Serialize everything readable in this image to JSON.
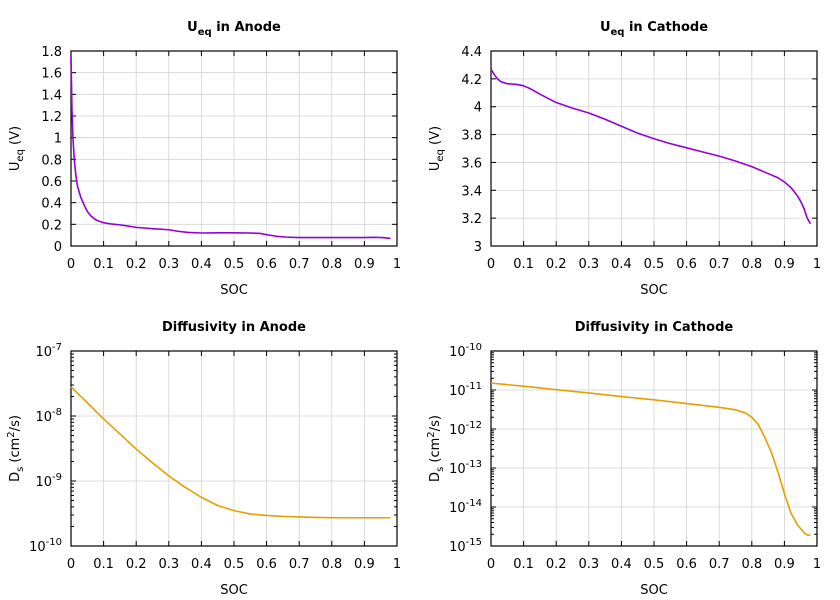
{
  "chart_data": [
    {
      "type": "line",
      "title": "U",
      "title_sub": "eq",
      "title_suffix": " in Anode",
      "xlabel": "SOC",
      "ylabel": "U",
      "ylabel_sub": "eq",
      "ylabel_suffix": " (V)",
      "xlim": [
        0,
        1
      ],
      "ylim": [
        0,
        1.8
      ],
      "yscale": "linear",
      "grid": true,
      "xticks": [
        0,
        0.1,
        0.2,
        0.3,
        0.4,
        0.5,
        0.6,
        0.7,
        0.8,
        0.9,
        1
      ],
      "xtick_labels": [
        "0",
        "0.1",
        "0.2",
        "0.3",
        "0.4",
        "0.5",
        "0.6",
        "0.7",
        "0.8",
        "0.9",
        "1"
      ],
      "yticks": [
        0,
        0.2,
        0.4,
        0.6,
        0.8,
        1,
        1.2,
        1.4,
        1.6,
        1.8
      ],
      "ytick_labels": [
        "0",
        "0.2",
        "0.4",
        "0.6",
        "0.8",
        "1",
        "1.2",
        "1.4",
        "1.6",
        "1.8"
      ],
      "color": "#9400d3",
      "series": [
        {
          "x": [
            0,
            0.003,
            0.006,
            0.01,
            0.015,
            0.02,
            0.03,
            0.04,
            0.05,
            0.06,
            0.07,
            0.08,
            0.09,
            0.1,
            0.12,
            0.15,
            0.18,
            0.2,
            0.25,
            0.3,
            0.33,
            0.36,
            0.4,
            0.45,
            0.5,
            0.55,
            0.58,
            0.6,
            0.63,
            0.66,
            0.7,
            0.75,
            0.8,
            0.85,
            0.9,
            0.93,
            0.96,
            0.98
          ],
          "values": [
            1.75,
            1.25,
            1.0,
            0.8,
            0.65,
            0.55,
            0.45,
            0.38,
            0.32,
            0.28,
            0.255,
            0.235,
            0.225,
            0.215,
            0.205,
            0.195,
            0.182,
            0.172,
            0.16,
            0.15,
            0.135,
            0.125,
            0.12,
            0.122,
            0.122,
            0.12,
            0.116,
            0.105,
            0.09,
            0.082,
            0.078,
            0.078,
            0.078,
            0.078,
            0.078,
            0.08,
            0.077,
            0.07
          ]
        }
      ]
    },
    {
      "type": "line",
      "title": "U",
      "title_sub": "eq",
      "title_suffix": " in Cathode",
      "xlabel": "SOC",
      "ylabel": "U",
      "ylabel_sub": "eq",
      "ylabel_suffix": " (V)",
      "xlim": [
        0,
        1
      ],
      "ylim": [
        3,
        4.4
      ],
      "yscale": "linear",
      "grid": true,
      "xticks": [
        0,
        0.1,
        0.2,
        0.3,
        0.4,
        0.5,
        0.6,
        0.7,
        0.8,
        0.9,
        1
      ],
      "xtick_labels": [
        "0",
        "0.1",
        "0.2",
        "0.3",
        "0.4",
        "0.5",
        "0.6",
        "0.7",
        "0.8",
        "0.9",
        "1"
      ],
      "yticks": [
        3,
        3.2,
        3.4,
        3.6,
        3.8,
        4,
        4.2,
        4.4
      ],
      "ytick_labels": [
        "3",
        "3.2",
        "3.4",
        "3.6",
        "3.8",
        "4",
        "4.2",
        "4.4"
      ],
      "color": "#9400d3",
      "series": [
        {
          "x": [
            0,
            0.01,
            0.02,
            0.03,
            0.05,
            0.08,
            0.1,
            0.12,
            0.15,
            0.2,
            0.25,
            0.3,
            0.35,
            0.4,
            0.45,
            0.5,
            0.55,
            0.6,
            0.65,
            0.7,
            0.75,
            0.8,
            0.85,
            0.88,
            0.9,
            0.92,
            0.94,
            0.95,
            0.96,
            0.97,
            0.98
          ],
          "values": [
            4.27,
            4.23,
            4.2,
            4.18,
            4.165,
            4.16,
            4.15,
            4.13,
            4.09,
            4.03,
            3.99,
            3.955,
            3.91,
            3.86,
            3.81,
            3.77,
            3.735,
            3.705,
            3.675,
            3.645,
            3.61,
            3.57,
            3.52,
            3.49,
            3.46,
            3.42,
            3.36,
            3.32,
            3.27,
            3.2,
            3.16
          ]
        }
      ]
    },
    {
      "type": "line",
      "title": "Diffusivity in Anode",
      "xlabel": "SOC",
      "ylabel": "D",
      "ylabel_sub": "s",
      "ylabel_mid": " (cm",
      "ylabel_sup": "2",
      "ylabel_suffix": "/s)",
      "xlim": [
        0,
        1
      ],
      "ylim": [
        1e-10,
        1e-07
      ],
      "yscale": "log",
      "grid": true,
      "xticks": [
        0,
        0.1,
        0.2,
        0.3,
        0.4,
        0.5,
        0.6,
        0.7,
        0.8,
        0.9,
        1
      ],
      "xtick_labels": [
        "0",
        "0.1",
        "0.2",
        "0.3",
        "0.4",
        "0.5",
        "0.6",
        "0.7",
        "0.8",
        "0.9",
        "1"
      ],
      "yticks": [
        1e-10,
        1e-09,
        1e-08,
        1e-07
      ],
      "ytick_base": "10",
      "ytick_exps": [
        "-10",
        "-9",
        "-8",
        "-7"
      ],
      "color": "#e69f00",
      "series": [
        {
          "x": [
            0,
            0.05,
            0.1,
            0.15,
            0.2,
            0.25,
            0.3,
            0.35,
            0.4,
            0.45,
            0.5,
            0.55,
            0.6,
            0.65,
            0.7,
            0.75,
            0.8,
            0.85,
            0.9,
            0.95,
            0.98
          ],
          "values": [
            2.8e-08,
            1.6e-08,
            9e-09,
            5.3e-09,
            3.1e-09,
            1.9e-09,
            1.2e-09,
            8e-10,
            5.6e-10,
            4.2e-10,
            3.5e-10,
            3.1e-10,
            2.95e-10,
            2.85e-10,
            2.8e-10,
            2.75e-10,
            2.73e-10,
            2.72e-10,
            2.72e-10,
            2.72e-10,
            2.72e-10
          ]
        }
      ]
    },
    {
      "type": "line",
      "title": "Diffusivity in Cathode",
      "xlabel": "SOC",
      "ylabel": "D",
      "ylabel_sub": "s",
      "ylabel_mid": " (cm",
      "ylabel_sup": "2",
      "ylabel_suffix": "/s)",
      "xlim": [
        0,
        1
      ],
      "ylim": [
        1e-15,
        1e-10
      ],
      "yscale": "log",
      "grid": true,
      "xticks": [
        0,
        0.1,
        0.2,
        0.3,
        0.4,
        0.5,
        0.6,
        0.7,
        0.8,
        0.9,
        1
      ],
      "xtick_labels": [
        "0",
        "0.1",
        "0.2",
        "0.3",
        "0.4",
        "0.5",
        "0.6",
        "0.7",
        "0.8",
        "0.9",
        "1"
      ],
      "yticks": [
        1e-15,
        1e-14,
        1e-13,
        1e-12,
        1e-11,
        1e-10
      ],
      "ytick_base": "10",
      "ytick_exps": [
        "-15",
        "-14",
        "-13",
        "-12",
        "-11",
        "-10"
      ],
      "color": "#e69f00",
      "series": [
        {
          "x": [
            0,
            0.1,
            0.2,
            0.3,
            0.4,
            0.5,
            0.6,
            0.7,
            0.75,
            0.78,
            0.8,
            0.82,
            0.84,
            0.86,
            0.88,
            0.9,
            0.92,
            0.94,
            0.96,
            0.97,
            0.98
          ],
          "values": [
            1.5e-11,
            1.25e-11,
            1.02e-11,
            8.4e-12,
            6.8e-12,
            5.6e-12,
            4.5e-12,
            3.6e-12,
            3.1e-12,
            2.6e-12,
            2e-12,
            1.3e-12,
            6e-13,
            2.5e-13,
            8e-14,
            2.2e-14,
            7e-15,
            3.5e-15,
            2.2e-15,
            1.9e-15,
            1.9e-15
          ]
        }
      ]
    }
  ]
}
